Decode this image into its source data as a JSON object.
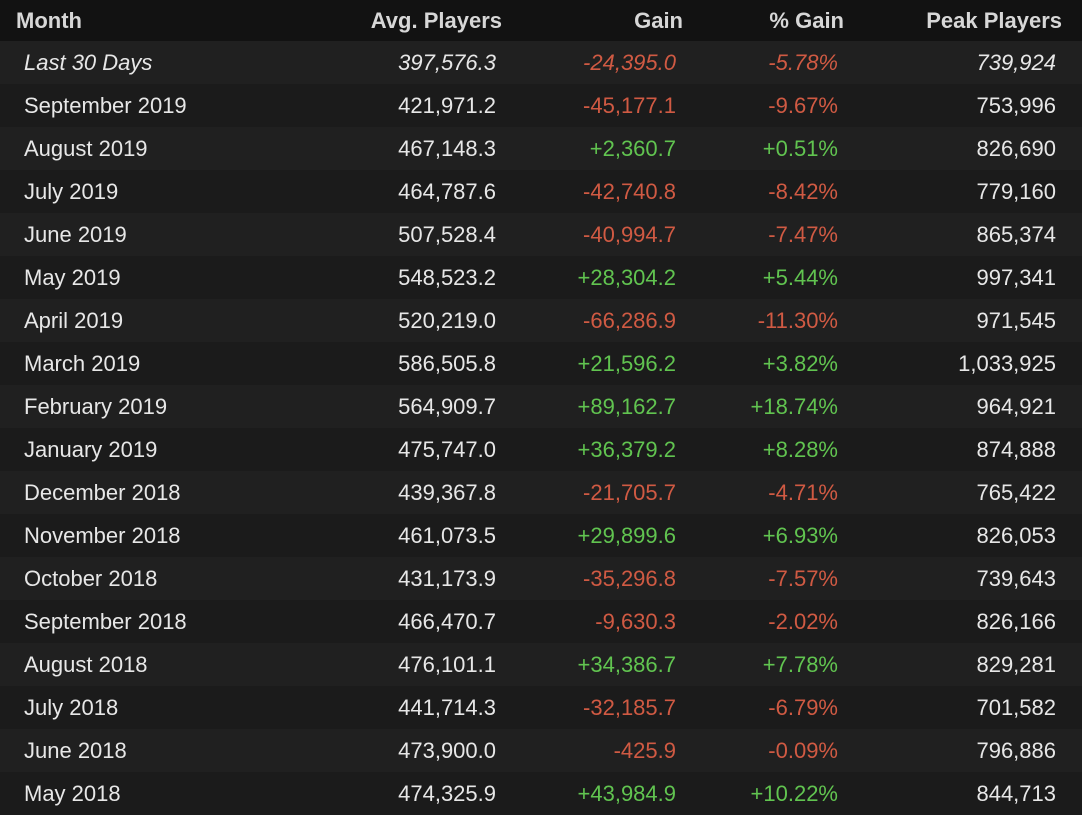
{
  "columns": {
    "month": "Month",
    "avg_players": "Avg. Players",
    "gain": "Gain",
    "pct_gain": "% Gain",
    "peak_players": "Peak Players"
  },
  "rows": [
    {
      "month": "Last 30 Days",
      "avg": "397,576.3",
      "gain": "-24,395.0",
      "pct": "-5.78%",
      "peak": "739,924",
      "trend": "neg",
      "italic": true
    },
    {
      "month": "September 2019",
      "avg": "421,971.2",
      "gain": "-45,177.1",
      "pct": "-9.67%",
      "peak": "753,996",
      "trend": "neg",
      "italic": false
    },
    {
      "month": "August 2019",
      "avg": "467,148.3",
      "gain": "+2,360.7",
      "pct": "+0.51%",
      "peak": "826,690",
      "trend": "pos",
      "italic": false
    },
    {
      "month": "July 2019",
      "avg": "464,787.6",
      "gain": "-42,740.8",
      "pct": "-8.42%",
      "peak": "779,160",
      "trend": "neg",
      "italic": false
    },
    {
      "month": "June 2019",
      "avg": "507,528.4",
      "gain": "-40,994.7",
      "pct": "-7.47%",
      "peak": "865,374",
      "trend": "neg",
      "italic": false
    },
    {
      "month": "May 2019",
      "avg": "548,523.2",
      "gain": "+28,304.2",
      "pct": "+5.44%",
      "peak": "997,341",
      "trend": "pos",
      "italic": false
    },
    {
      "month": "April 2019",
      "avg": "520,219.0",
      "gain": "-66,286.9",
      "pct": "-11.30%",
      "peak": "971,545",
      "trend": "neg",
      "italic": false
    },
    {
      "month": "March 2019",
      "avg": "586,505.8",
      "gain": "+21,596.2",
      "pct": "+3.82%",
      "peak": "1,033,925",
      "trend": "pos",
      "italic": false
    },
    {
      "month": "February 2019",
      "avg": "564,909.7",
      "gain": "+89,162.7",
      "pct": "+18.74%",
      "peak": "964,921",
      "trend": "pos",
      "italic": false
    },
    {
      "month": "January 2019",
      "avg": "475,747.0",
      "gain": "+36,379.2",
      "pct": "+8.28%",
      "peak": "874,888",
      "trend": "pos",
      "italic": false
    },
    {
      "month": "December 2018",
      "avg": "439,367.8",
      "gain": "-21,705.7",
      "pct": "-4.71%",
      "peak": "765,422",
      "trend": "neg",
      "italic": false
    },
    {
      "month": "November 2018",
      "avg": "461,073.5",
      "gain": "+29,899.6",
      "pct": "+6.93%",
      "peak": "826,053",
      "trend": "pos",
      "italic": false
    },
    {
      "month": "October 2018",
      "avg": "431,173.9",
      "gain": "-35,296.8",
      "pct": "-7.57%",
      "peak": "739,643",
      "trend": "neg",
      "italic": false
    },
    {
      "month": "September 2018",
      "avg": "466,470.7",
      "gain": "-9,630.3",
      "pct": "-2.02%",
      "peak": "826,166",
      "trend": "neg",
      "italic": false
    },
    {
      "month": "August 2018",
      "avg": "476,101.1",
      "gain": "+34,386.7",
      "pct": "+7.78%",
      "peak": "829,281",
      "trend": "pos",
      "italic": false
    },
    {
      "month": "July 2018",
      "avg": "441,714.3",
      "gain": "-32,185.7",
      "pct": "-6.79%",
      "peak": "701,582",
      "trend": "neg",
      "italic": false
    },
    {
      "month": "June 2018",
      "avg": "473,900.0",
      "gain": "-425.9",
      "pct": "-0.09%",
      "peak": "796,886",
      "trend": "neg",
      "italic": false
    },
    {
      "month": "May 2018",
      "avg": "474,325.9",
      "gain": "+43,984.9",
      "pct": "+10.22%",
      "peak": "844,713",
      "trend": "pos",
      "italic": false
    }
  ],
  "colors": {
    "background": "#1b1b1b",
    "header_background": "#121212",
    "row_alt_background": "#202020",
    "text": "#e7e7e7",
    "negative": "#d05a43",
    "positive": "#61c450"
  }
}
